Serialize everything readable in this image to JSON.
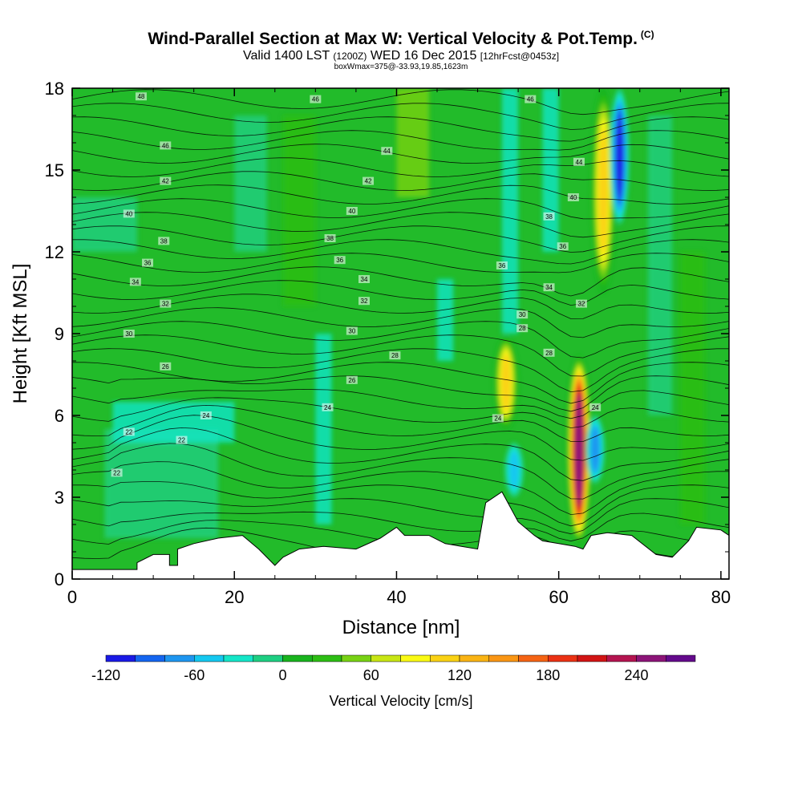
{
  "title": {
    "main": "Wind-Parallel Section at Max W: Vertical Velocity & Pot.Temp.",
    "copyright": "(C)",
    "valid": "Valid 1400 LST",
    "utc": "(1200Z)",
    "date": "WED 16 Dec 2015",
    "forecast": "[12hrFcst@0453z]",
    "boxinfo": "boxWmax=375@-33.93,19.85,1623m"
  },
  "chart_data": {
    "type": "heatmap",
    "title": "Wind-Parallel Section at Max W: Vertical Velocity & Pot.Temp.",
    "xlabel": "Distance [nm]",
    "ylabel": "Height [Kft MSL]",
    "xlim": [
      0,
      81
    ],
    "ylim": [
      0,
      18
    ],
    "x_ticks": [
      "0",
      "20",
      "40",
      "60",
      "80"
    ],
    "y_ticks": [
      "0",
      "3",
      "6",
      "9",
      "12",
      "15",
      "18"
    ],
    "colorbar": {
      "label": "Vertical Velocity [cm/s]",
      "range": [
        -120,
        280
      ],
      "step": 20,
      "tick_labels": [
        "-120",
        "-60",
        "0",
        "60",
        "120",
        "180",
        "240"
      ],
      "tick_values": [
        -120,
        -60,
        0,
        60,
        120,
        180,
        240
      ],
      "colors": [
        "#1a1ae6",
        "#1466f0",
        "#1e96f0",
        "#14c8f0",
        "#14e6c8",
        "#1ecf82",
        "#19b41e",
        "#2dbe14",
        "#78d214",
        "#c8e614",
        "#fafa14",
        "#fad214",
        "#fab414",
        "#fa9614",
        "#f56414",
        "#eb3214",
        "#d21414",
        "#b41450",
        "#8c1478",
        "#640a8c"
      ]
    },
    "background_color": "#22bb2a",
    "terrain_nm_kft": [
      [
        0,
        0.35
      ],
      [
        8,
        0.35
      ],
      [
        8,
        0.6
      ],
      [
        10,
        0.9
      ],
      [
        12,
        0.9
      ],
      [
        12,
        0.5
      ],
      [
        13,
        0.5
      ],
      [
        13,
        1.1
      ],
      [
        15,
        1.3
      ],
      [
        18,
        1.5
      ],
      [
        21,
        1.6
      ],
      [
        23,
        1.1
      ],
      [
        25,
        0.5
      ],
      [
        26,
        0.8
      ],
      [
        28,
        1.1
      ],
      [
        31,
        1.2
      ],
      [
        35,
        1.1
      ],
      [
        38,
        1.5
      ],
      [
        40,
        1.9
      ],
      [
        41,
        1.6
      ],
      [
        44,
        1.6
      ],
      [
        46,
        1.3
      ],
      [
        48,
        1.2
      ],
      [
        50,
        1.1
      ],
      [
        51,
        2.8
      ],
      [
        53,
        3.2
      ],
      [
        55,
        2.1
      ],
      [
        57,
        1.6
      ],
      [
        58,
        1.4
      ],
      [
        60,
        1.3
      ],
      [
        62,
        1.2
      ],
      [
        63,
        1.1
      ],
      [
        64,
        1.6
      ],
      [
        66,
        1.7
      ],
      [
        69,
        1.6
      ],
      [
        72,
        0.9
      ],
      [
        74,
        0.8
      ],
      [
        76,
        1.4
      ],
      [
        77,
        1.9
      ],
      [
        80,
        1.8
      ],
      [
        81,
        1.6
      ]
    ],
    "features": [
      {
        "name": "Updraft core",
        "type": "updraft",
        "x_nm": 62.5,
        "height_kft": [
          1.3,
          8.2
        ],
        "max_value_cm_s": 250
      },
      {
        "name": "Upper updraft plume",
        "type": "updraft",
        "x_nm": 65.5,
        "height_kft": [
          10.5,
          18
        ],
        "max_value_cm_s": 120
      },
      {
        "name": "Upper downdraft",
        "type": "downdraft",
        "x_nm": 67.5,
        "height_kft": [
          13,
          18
        ],
        "min_value_cm_s": -120
      },
      {
        "name": "Secondary updraft",
        "type": "updraft",
        "x_nm": 53.5,
        "height_kft": [
          5.5,
          8.9
        ],
        "max_value_cm_s": 110
      },
      {
        "name": "Low-level downdraft",
        "type": "downdraft",
        "x_nm": 54.5,
        "height_kft": [
          3.0,
          5.0
        ],
        "min_value_cm_s": -60
      },
      {
        "name": "Downdraft beside updraft",
        "type": "downdraft",
        "x_nm": 64.5,
        "height_kft": [
          3.5,
          6.0
        ],
        "min_value_cm_s": -80
      }
    ],
    "theta_labels": [
      {
        "text": "48",
        "x": 8.5,
        "y": 17.7
      },
      {
        "text": "46",
        "x": 30.0,
        "y": 17.6
      },
      {
        "text": "46",
        "x": 56.5,
        "y": 17.6
      },
      {
        "text": "46",
        "x": 11.5,
        "y": 15.9
      },
      {
        "text": "44",
        "x": 38.8,
        "y": 15.7
      },
      {
        "text": "44",
        "x": 62.5,
        "y": 15.3
      },
      {
        "text": "42",
        "x": 11.5,
        "y": 14.6
      },
      {
        "text": "42",
        "x": 36.5,
        "y": 14.6
      },
      {
        "text": "40",
        "x": 61.8,
        "y": 14.0
      },
      {
        "text": "40",
        "x": 7.0,
        "y": 13.4
      },
      {
        "text": "40",
        "x": 34.5,
        "y": 13.5
      },
      {
        "text": "38",
        "x": 58.8,
        "y": 13.3
      },
      {
        "text": "38",
        "x": 11.3,
        "y": 12.4
      },
      {
        "text": "38",
        "x": 31.8,
        "y": 12.5
      },
      {
        "text": "36",
        "x": 60.5,
        "y": 12.2
      },
      {
        "text": "36",
        "x": 9.3,
        "y": 11.6
      },
      {
        "text": "36",
        "x": 33.0,
        "y": 11.7
      },
      {
        "text": "36",
        "x": 53.0,
        "y": 11.5
      },
      {
        "text": "34",
        "x": 7.8,
        "y": 10.9
      },
      {
        "text": "34",
        "x": 36.0,
        "y": 11.0
      },
      {
        "text": "34",
        "x": 58.8,
        "y": 10.7
      },
      {
        "text": "32",
        "x": 11.5,
        "y": 10.1
      },
      {
        "text": "32",
        "x": 36.0,
        "y": 10.2
      },
      {
        "text": "32",
        "x": 62.8,
        "y": 10.1
      },
      {
        "text": "30",
        "x": 7.0,
        "y": 9.0
      },
      {
        "text": "30",
        "x": 34.5,
        "y": 9.1
      },
      {
        "text": "30",
        "x": 55.5,
        "y": 9.7
      },
      {
        "text": "28",
        "x": 55.5,
        "y": 9.2
      },
      {
        "text": "28",
        "x": 39.8,
        "y": 8.2
      },
      {
        "text": "28",
        "x": 58.8,
        "y": 8.3
      },
      {
        "text": "26",
        "x": 11.5,
        "y": 7.8
      },
      {
        "text": "26",
        "x": 34.5,
        "y": 7.3
      },
      {
        "text": "24",
        "x": 16.5,
        "y": 6.0
      },
      {
        "text": "24",
        "x": 31.5,
        "y": 6.3
      },
      {
        "text": "24",
        "x": 64.5,
        "y": 6.3
      },
      {
        "text": "24",
        "x": 52.5,
        "y": 5.9
      },
      {
        "text": "22",
        "x": 7.0,
        "y": 5.4
      },
      {
        "text": "22",
        "x": 13.5,
        "y": 5.1
      },
      {
        "text": "22",
        "x": 5.5,
        "y": 3.9
      }
    ]
  }
}
